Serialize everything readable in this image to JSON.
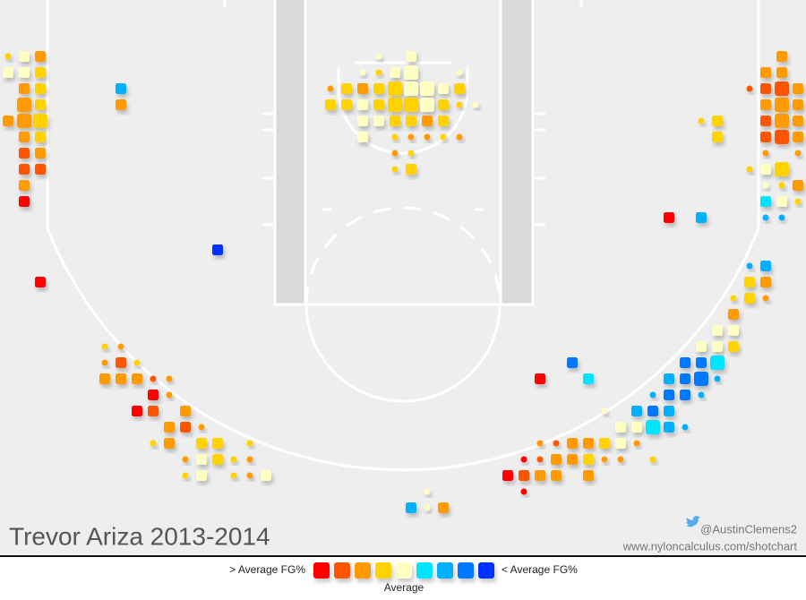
{
  "chart_data": {
    "type": "scatter",
    "title": "Trevor Ariza 2013-2014",
    "credit_handle": "@AustinClemens2",
    "credit_url": "www.nyloncalculus.com/shotchart",
    "xlim": [
      -25,
      25
    ],
    "ylim": [
      -5.5,
      29
    ],
    "colors": [
      "#ff0000",
      "#ff5500",
      "#ff9a00",
      "#ffd200",
      "#ffffc4",
      "#00e5ff",
      "#00b0ff",
      "#0078ff",
      "#0030ff"
    ],
    "legend": {
      "high_label": "> Average FG%",
      "low_label": "< Average FG%",
      "mid_label": "Average"
    },
    "points": [
      {
        "x": -24.5,
        "y": -2,
        "size": 1,
        "level": 3
      },
      {
        "x": -23.5,
        "y": -2,
        "size": 2,
        "level": 4
      },
      {
        "x": -22.5,
        "y": -2,
        "size": 2,
        "level": 2
      },
      {
        "x": -24.5,
        "y": -1,
        "size": 2,
        "level": 4
      },
      {
        "x": -23.5,
        "y": -1,
        "size": 2,
        "level": 4
      },
      {
        "x": -22.5,
        "y": -1,
        "size": 2,
        "level": 3
      },
      {
        "x": -23.5,
        "y": 0,
        "size": 2,
        "level": 2
      },
      {
        "x": -22.5,
        "y": 0,
        "size": 2,
        "level": 3
      },
      {
        "x": -23.5,
        "y": 1,
        "size": 3,
        "level": 2
      },
      {
        "x": -22.5,
        "y": 1,
        "size": 2,
        "level": 3
      },
      {
        "x": -24.5,
        "y": 2,
        "size": 2,
        "level": 2
      },
      {
        "x": -23.5,
        "y": 2,
        "size": 3,
        "level": 2
      },
      {
        "x": -22.5,
        "y": 2,
        "size": 3,
        "level": 3
      },
      {
        "x": -23.5,
        "y": 3,
        "size": 2,
        "level": 2
      },
      {
        "x": -22.5,
        "y": 3,
        "size": 2,
        "level": 3
      },
      {
        "x": -23.5,
        "y": 4,
        "size": 2,
        "level": 1
      },
      {
        "x": -22.5,
        "y": 4,
        "size": 2,
        "level": 2
      },
      {
        "x": -23.5,
        "y": 5,
        "size": 2,
        "level": 1
      },
      {
        "x": -22.5,
        "y": 5,
        "size": 2,
        "level": 1
      },
      {
        "x": -23.5,
        "y": 6,
        "size": 2,
        "level": 2
      },
      {
        "x": -23.5,
        "y": 7,
        "size": 2,
        "level": 0
      },
      {
        "x": -17.5,
        "y": 0,
        "size": 2,
        "level": 6
      },
      {
        "x": -17.5,
        "y": 1,
        "size": 2,
        "level": 2
      },
      {
        "x": -11.5,
        "y": 10,
        "size": 2,
        "level": 8
      },
      {
        "x": -22.5,
        "y": 12,
        "size": 2,
        "level": 0
      },
      {
        "x": 0.5,
        "y": -2,
        "size": 2,
        "level": 4
      },
      {
        "x": -1.5,
        "y": -2,
        "size": 1,
        "level": 4
      },
      {
        "x": -0.5,
        "y": -1,
        "size": 2,
        "level": 4
      },
      {
        "x": 0.5,
        "y": -1,
        "size": 3,
        "level": 4
      },
      {
        "x": -1.5,
        "y": -1,
        "size": 1,
        "level": 3
      },
      {
        "x": 3.5,
        "y": -1,
        "size": 1,
        "level": 4
      },
      {
        "x": -2.5,
        "y": -1,
        "size": 1,
        "level": 4
      },
      {
        "x": -4.5,
        "y": 0,
        "size": 1,
        "level": 2
      },
      {
        "x": -3.5,
        "y": 0,
        "size": 2,
        "level": 3
      },
      {
        "x": -2.5,
        "y": 0,
        "size": 2,
        "level": 2
      },
      {
        "x": -1.5,
        "y": 0,
        "size": 2,
        "level": 3
      },
      {
        "x": -0.5,
        "y": 0,
        "size": 3,
        "level": 3
      },
      {
        "x": 0.5,
        "y": 0,
        "size": 3,
        "level": 4
      },
      {
        "x": 1.5,
        "y": 0,
        "size": 3,
        "level": 4
      },
      {
        "x": 2.5,
        "y": 0,
        "size": 2,
        "level": 4
      },
      {
        "x": 3.5,
        "y": 0,
        "size": 2,
        "level": 3
      },
      {
        "x": -4.5,
        "y": 1,
        "size": 2,
        "level": 3
      },
      {
        "x": -3.5,
        "y": 1,
        "size": 2,
        "level": 3
      },
      {
        "x": -2.5,
        "y": 1,
        "size": 2,
        "level": 4
      },
      {
        "x": -1.5,
        "y": 1,
        "size": 2,
        "level": 3
      },
      {
        "x": -0.5,
        "y": 1,
        "size": 3,
        "level": 3
      },
      {
        "x": 0.5,
        "y": 1,
        "size": 3,
        "level": 3
      },
      {
        "x": 1.5,
        "y": 1,
        "size": 3,
        "level": 4
      },
      {
        "x": 2.5,
        "y": 1,
        "size": 2,
        "level": 3
      },
      {
        "x": 3.5,
        "y": 1,
        "size": 1,
        "level": 3
      },
      {
        "x": 4.5,
        "y": 1,
        "size": 1,
        "level": 4
      },
      {
        "x": -2.5,
        "y": 2,
        "size": 2,
        "level": 4
      },
      {
        "x": -1.5,
        "y": 2,
        "size": 2,
        "level": 4
      },
      {
        "x": -0.5,
        "y": 2,
        "size": 2,
        "level": 3
      },
      {
        "x": 0.5,
        "y": 2,
        "size": 2,
        "level": 3
      },
      {
        "x": 1.5,
        "y": 2,
        "size": 2,
        "level": 2
      },
      {
        "x": 2.5,
        "y": 2,
        "size": 2,
        "level": 3
      },
      {
        "x": -2.5,
        "y": 3,
        "size": 2,
        "level": 4
      },
      {
        "x": -0.5,
        "y": 3,
        "size": 1,
        "level": 3
      },
      {
        "x": 0.5,
        "y": 3,
        "size": 1,
        "level": 2
      },
      {
        "x": 1.5,
        "y": 3,
        "size": 1,
        "level": 2
      },
      {
        "x": 2.5,
        "y": 3,
        "size": 1,
        "level": 3
      },
      {
        "x": 3.5,
        "y": 3,
        "size": 1,
        "level": 2
      },
      {
        "x": -0.5,
        "y": 4,
        "size": 1,
        "level": 2
      },
      {
        "x": 0.5,
        "y": 4,
        "size": 1,
        "level": 3
      },
      {
        "x": -0.5,
        "y": 5,
        "size": 1,
        "level": 3
      },
      {
        "x": 0.5,
        "y": 5,
        "size": 2,
        "level": 3
      },
      {
        "x": 23.5,
        "y": -2,
        "size": 2,
        "level": 2
      },
      {
        "x": 22.5,
        "y": -1,
        "size": 2,
        "level": 2
      },
      {
        "x": 23.5,
        "y": -1,
        "size": 2,
        "level": 2
      },
      {
        "x": 21.5,
        "y": 0,
        "size": 1,
        "level": 1
      },
      {
        "x": 22.5,
        "y": 0,
        "size": 2,
        "level": 1
      },
      {
        "x": 23.5,
        "y": 0,
        "size": 3,
        "level": 1
      },
      {
        "x": 24.5,
        "y": 0,
        "size": 2,
        "level": 2
      },
      {
        "x": 22.5,
        "y": 1,
        "size": 2,
        "level": 2
      },
      {
        "x": 23.5,
        "y": 1,
        "size": 3,
        "level": 2
      },
      {
        "x": 24.5,
        "y": 1,
        "size": 2,
        "level": 2
      },
      {
        "x": 18.5,
        "y": 2,
        "size": 1,
        "level": 3
      },
      {
        "x": 19.5,
        "y": 2,
        "size": 2,
        "level": 3
      },
      {
        "x": 22.5,
        "y": 2,
        "size": 2,
        "level": 1
      },
      {
        "x": 23.5,
        "y": 2,
        "size": 3,
        "level": 2
      },
      {
        "x": 24.5,
        "y": 2,
        "size": 2,
        "level": 2
      },
      {
        "x": 19.5,
        "y": 3,
        "size": 2,
        "level": 3
      },
      {
        "x": 22.5,
        "y": 3,
        "size": 2,
        "level": 1
      },
      {
        "x": 23.5,
        "y": 3,
        "size": 3,
        "level": 1
      },
      {
        "x": 24.5,
        "y": 3,
        "size": 2,
        "level": 2
      },
      {
        "x": 22.5,
        "y": 4,
        "size": 1,
        "level": 2
      },
      {
        "x": 24.5,
        "y": 4,
        "size": 1,
        "level": 2
      },
      {
        "x": 21.5,
        "y": 5,
        "size": 1,
        "level": 3
      },
      {
        "x": 22.5,
        "y": 5,
        "size": 2,
        "level": 4
      },
      {
        "x": 23.5,
        "y": 5,
        "size": 3,
        "level": 3
      },
      {
        "x": 22.5,
        "y": 6,
        "size": 1,
        "level": 4
      },
      {
        "x": 23.5,
        "y": 6,
        "size": 1,
        "level": 3
      },
      {
        "x": 24.5,
        "y": 6,
        "size": 2,
        "level": 2
      },
      {
        "x": 22.5,
        "y": 7,
        "size": 2,
        "level": 5
      },
      {
        "x": 23.5,
        "y": 7,
        "size": 2,
        "level": 4
      },
      {
        "x": 24.5,
        "y": 7,
        "size": 1,
        "level": 3
      },
      {
        "x": 22.5,
        "y": 8,
        "size": 1,
        "level": 6
      },
      {
        "x": 23.5,
        "y": 8,
        "size": 1,
        "level": 6
      },
      {
        "x": 16.5,
        "y": 8,
        "size": 2,
        "level": 0
      },
      {
        "x": 18.5,
        "y": 8,
        "size": 2,
        "level": 6
      },
      {
        "x": 21.5,
        "y": 11,
        "size": 1,
        "level": 6
      },
      {
        "x": 22.5,
        "y": 11,
        "size": 2,
        "level": 6
      },
      {
        "x": 21.5,
        "y": 12,
        "size": 2,
        "level": 3
      },
      {
        "x": 22.5,
        "y": 12,
        "size": 2,
        "level": 2
      },
      {
        "x": 20.5,
        "y": 13,
        "size": 1,
        "level": 3
      },
      {
        "x": 21.5,
        "y": 13,
        "size": 2,
        "level": 3
      },
      {
        "x": 22.5,
        "y": 13,
        "size": 1,
        "level": 2
      },
      {
        "x": 20.5,
        "y": 14,
        "size": 2,
        "level": 2
      },
      {
        "x": 19.5,
        "y": 15,
        "size": 2,
        "level": 4
      },
      {
        "x": 20.5,
        "y": 15,
        "size": 2,
        "level": 4
      },
      {
        "x": 18.5,
        "y": 16,
        "size": 2,
        "level": 4
      },
      {
        "x": 19.5,
        "y": 16,
        "size": 2,
        "level": 4
      },
      {
        "x": 20.5,
        "y": 16,
        "size": 2,
        "level": 3
      },
      {
        "x": 10.5,
        "y": 17,
        "size": 2,
        "level": 7
      },
      {
        "x": 17.5,
        "y": 17,
        "size": 2,
        "level": 7
      },
      {
        "x": 18.5,
        "y": 17,
        "size": 2,
        "level": 7
      },
      {
        "x": 19.5,
        "y": 17,
        "size": 3,
        "level": 5
      },
      {
        "x": 8.5,
        "y": 18,
        "size": 2,
        "level": 0
      },
      {
        "x": 11.5,
        "y": 18,
        "size": 2,
        "level": 5
      },
      {
        "x": 16.5,
        "y": 18,
        "size": 2,
        "level": 6
      },
      {
        "x": 17.5,
        "y": 18,
        "size": 2,
        "level": 7
      },
      {
        "x": 18.5,
        "y": 18,
        "size": 3,
        "level": 7
      },
      {
        "x": 19.5,
        "y": 18,
        "size": 1,
        "level": 6
      },
      {
        "x": 15.5,
        "y": 19,
        "size": 1,
        "level": 6
      },
      {
        "x": 16.5,
        "y": 19,
        "size": 2,
        "level": 7
      },
      {
        "x": 17.5,
        "y": 19,
        "size": 2,
        "level": 7
      },
      {
        "x": 18.5,
        "y": 19,
        "size": 1,
        "level": 6
      },
      {
        "x": 12.5,
        "y": 20,
        "size": 1,
        "level": 4
      },
      {
        "x": 14.5,
        "y": 20,
        "size": 2,
        "level": 6
      },
      {
        "x": 15.5,
        "y": 20,
        "size": 2,
        "level": 7
      },
      {
        "x": 16.5,
        "y": 20,
        "size": 2,
        "level": 6
      },
      {
        "x": 13.5,
        "y": 21,
        "size": 2,
        "level": 4
      },
      {
        "x": 14.5,
        "y": 21,
        "size": 2,
        "level": 4
      },
      {
        "x": 15.5,
        "y": 21,
        "size": 3,
        "level": 5
      },
      {
        "x": 16.5,
        "y": 21,
        "size": 2,
        "level": 6
      },
      {
        "x": 17.5,
        "y": 21,
        "size": 1,
        "level": 6
      },
      {
        "x": 8.5,
        "y": 22,
        "size": 1,
        "level": 2
      },
      {
        "x": 9.5,
        "y": 22,
        "size": 1,
        "level": 1
      },
      {
        "x": 10.5,
        "y": 22,
        "size": 2,
        "level": 2
      },
      {
        "x": 11.5,
        "y": 22,
        "size": 2,
        "level": 2
      },
      {
        "x": 12.5,
        "y": 22,
        "size": 2,
        "level": 3
      },
      {
        "x": 13.5,
        "y": 22,
        "size": 2,
        "level": 4
      },
      {
        "x": 14.5,
        "y": 22,
        "size": 1,
        "level": 2
      },
      {
        "x": 7.5,
        "y": 23,
        "size": 1,
        "level": 0
      },
      {
        "x": 8.5,
        "y": 23,
        "size": 1,
        "level": 1
      },
      {
        "x": 9.5,
        "y": 23,
        "size": 2,
        "level": 2
      },
      {
        "x": 10.5,
        "y": 23,
        "size": 2,
        "level": 2
      },
      {
        "x": 11.5,
        "y": 23,
        "size": 2,
        "level": 3
      },
      {
        "x": 12.5,
        "y": 23,
        "size": 1,
        "level": 2
      },
      {
        "x": 13.5,
        "y": 23,
        "size": 1,
        "level": 2
      },
      {
        "x": 15.5,
        "y": 23,
        "size": 1,
        "level": 3
      },
      {
        "x": 6.5,
        "y": 24,
        "size": 2,
        "level": 0
      },
      {
        "x": 7.5,
        "y": 24,
        "size": 2,
        "level": 1
      },
      {
        "x": 8.5,
        "y": 24,
        "size": 2,
        "level": 2
      },
      {
        "x": 9.5,
        "y": 24,
        "size": 2,
        "level": 2
      },
      {
        "x": 11.5,
        "y": 24,
        "size": 2,
        "level": 2
      },
      {
        "x": 7.5,
        "y": 25,
        "size": 1,
        "level": 0
      },
      {
        "x": 1.5,
        "y": 25,
        "size": 1,
        "level": 4
      },
      {
        "x": 0.5,
        "y": 26,
        "size": 2,
        "level": 6
      },
      {
        "x": 1.5,
        "y": 26,
        "size": 1,
        "level": 4
      },
      {
        "x": 2.5,
        "y": 26,
        "size": 2,
        "level": 2
      },
      {
        "x": -18.5,
        "y": 16,
        "size": 1,
        "level": 3
      },
      {
        "x": -17.5,
        "y": 16,
        "size": 1,
        "level": 2
      },
      {
        "x": -18.5,
        "y": 17,
        "size": 1,
        "level": 2
      },
      {
        "x": -17.5,
        "y": 17,
        "size": 2,
        "level": 1
      },
      {
        "x": -16.5,
        "y": 17,
        "size": 1,
        "level": 3
      },
      {
        "x": -18.5,
        "y": 18,
        "size": 2,
        "level": 2
      },
      {
        "x": -17.5,
        "y": 18,
        "size": 2,
        "level": 2
      },
      {
        "x": -16.5,
        "y": 18,
        "size": 2,
        "level": 2
      },
      {
        "x": -15.5,
        "y": 18,
        "size": 1,
        "level": 1
      },
      {
        "x": -14.5,
        "y": 18,
        "size": 1,
        "level": 2
      },
      {
        "x": -15.5,
        "y": 19,
        "size": 2,
        "level": 0
      },
      {
        "x": -14.5,
        "y": 19,
        "size": 1,
        "level": 2
      },
      {
        "x": -16.5,
        "y": 20,
        "size": 2,
        "level": 0
      },
      {
        "x": -15.5,
        "y": 20,
        "size": 2,
        "level": 1
      },
      {
        "x": -13.5,
        "y": 20,
        "size": 2,
        "level": 2
      },
      {
        "x": -14.5,
        "y": 21,
        "size": 2,
        "level": 2
      },
      {
        "x": -13.5,
        "y": 21,
        "size": 2,
        "level": 1
      },
      {
        "x": -12.5,
        "y": 21,
        "size": 1,
        "level": 2
      },
      {
        "x": -15.5,
        "y": 22,
        "size": 1,
        "level": 3
      },
      {
        "x": -14.5,
        "y": 22,
        "size": 2,
        "level": 2
      },
      {
        "x": -12.5,
        "y": 22,
        "size": 2,
        "level": 3
      },
      {
        "x": -11.5,
        "y": 22,
        "size": 2,
        "level": 3
      },
      {
        "x": -9.5,
        "y": 22,
        "size": 1,
        "level": 3
      },
      {
        "x": -13.5,
        "y": 23,
        "size": 1,
        "level": 2
      },
      {
        "x": -12.5,
        "y": 23,
        "size": 2,
        "level": 4
      },
      {
        "x": -11.5,
        "y": 23,
        "size": 2,
        "level": 3
      },
      {
        "x": -10.5,
        "y": 23,
        "size": 1,
        "level": 3
      },
      {
        "x": -9.5,
        "y": 23,
        "size": 1,
        "level": 2
      },
      {
        "x": -13.5,
        "y": 24,
        "size": 1,
        "level": 3
      },
      {
        "x": -12.5,
        "y": 24,
        "size": 2,
        "level": 4
      },
      {
        "x": -10.5,
        "y": 24,
        "size": 1,
        "level": 3
      },
      {
        "x": -9.5,
        "y": 24,
        "size": 1,
        "level": 2
      },
      {
        "x": -8.5,
        "y": 24,
        "size": 2,
        "level": 4
      }
    ]
  }
}
